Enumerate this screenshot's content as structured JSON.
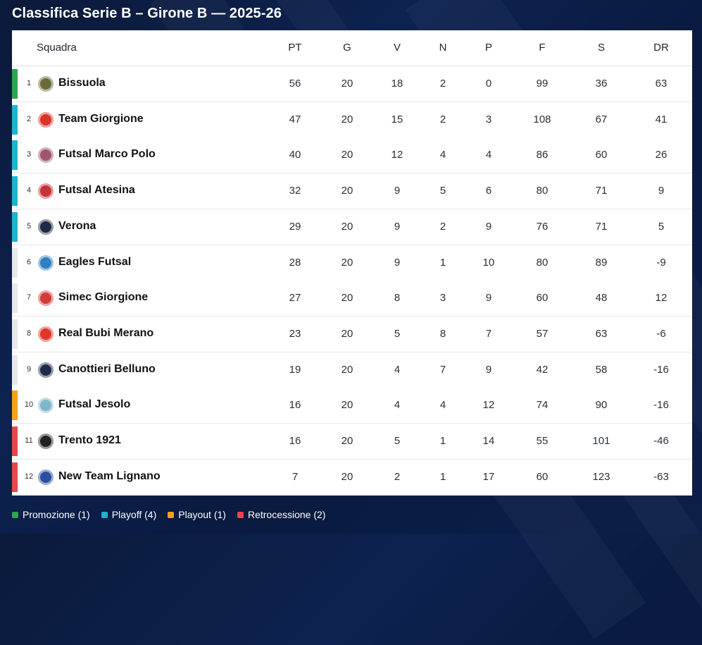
{
  "title": "Classifica Serie B – Girone B — 2025-26",
  "headers": {
    "team": "Squadra",
    "pt": "PT",
    "g": "G",
    "v": "V",
    "n": "N",
    "p": "P",
    "f": "F",
    "s": "S",
    "dr": "DR"
  },
  "zones": {
    "promozione": {
      "label": "Promozione (1)",
      "color": "#2ea44f"
    },
    "playoff": {
      "label": "Playoff (4)",
      "color": "#1fb3cf"
    },
    "playout": {
      "label": "Playout (1)",
      "color": "#f0a41c"
    },
    "retrocessione": {
      "label": "Retrocessione (2)",
      "color": "#e5484d"
    },
    "none": {
      "label": "",
      "color": "#e6e8ec"
    }
  },
  "rows": [
    {
      "pos": "1",
      "team": "Bissuola",
      "zone": "promozione",
      "crest_icon": "bissuola-crest-icon",
      "crest_color": "#6b6b3a",
      "pt": "56",
      "g": "20",
      "v": "18",
      "n": "2",
      "p": "0",
      "f": "99",
      "s": "36",
      "dr": "63"
    },
    {
      "pos": "2",
      "team": "Team Giorgione",
      "zone": "playoff",
      "crest_icon": "team-giorgione-crest-icon",
      "crest_color": "#d9342b",
      "pt": "47",
      "g": "20",
      "v": "15",
      "n": "2",
      "p": "3",
      "f": "108",
      "s": "67",
      "dr": "41"
    },
    {
      "pos": "3",
      "team": "Futsal Marco Polo",
      "zone": "playoff",
      "crest_icon": "futsal-marco-polo-crest-icon",
      "crest_color": "#a0566a",
      "pt": "40",
      "g": "20",
      "v": "12",
      "n": "4",
      "p": "4",
      "f": "86",
      "s": "60",
      "dr": "26"
    },
    {
      "pos": "4",
      "team": "Futsal Atesina",
      "zone": "playoff",
      "crest_icon": "futsal-atesina-crest-icon",
      "crest_color": "#c8323a",
      "pt": "32",
      "g": "20",
      "v": "9",
      "n": "5",
      "p": "6",
      "f": "80",
      "s": "71",
      "dr": "9"
    },
    {
      "pos": "5",
      "team": "Verona",
      "zone": "playoff",
      "crest_icon": "verona-crest-icon",
      "crest_color": "#1f2a44",
      "pt": "29",
      "g": "20",
      "v": "9",
      "n": "2",
      "p": "9",
      "f": "76",
      "s": "71",
      "dr": "5"
    },
    {
      "pos": "6",
      "team": "Eagles Futsal",
      "zone": "none",
      "crest_icon": "eagles-futsal-crest-icon",
      "crest_color": "#2f7fc1",
      "pt": "28",
      "g": "20",
      "v": "9",
      "n": "1",
      "p": "10",
      "f": "80",
      "s": "89",
      "dr": "-9"
    },
    {
      "pos": "7",
      "team": "Simec Giorgione",
      "zone": "none",
      "crest_icon": "simec-giorgione-crest-icon",
      "crest_color": "#d33a3a",
      "pt": "27",
      "g": "20",
      "v": "8",
      "n": "3",
      "p": "9",
      "f": "60",
      "s": "48",
      "dr": "12"
    },
    {
      "pos": "8",
      "team": "Real Bubi Merano",
      "zone": "none",
      "crest_icon": "real-bubi-merano-crest-icon",
      "crest_color": "#e0362c",
      "pt": "23",
      "g": "20",
      "v": "5",
      "n": "8",
      "p": "7",
      "f": "57",
      "s": "63",
      "dr": "-6"
    },
    {
      "pos": "9",
      "team": "Canottieri Belluno",
      "zone": "none",
      "crest_icon": "canottieri-belluno-crest-icon",
      "crest_color": "#1d2a4a",
      "pt": "19",
      "g": "20",
      "v": "4",
      "n": "7",
      "p": "9",
      "f": "42",
      "s": "58",
      "dr": "-16"
    },
    {
      "pos": "10",
      "team": "Futsal Jesolo",
      "zone": "playout",
      "crest_icon": "futsal-jesolo-crest-icon",
      "crest_color": "#7fb7c9",
      "pt": "16",
      "g": "20",
      "v": "4",
      "n": "4",
      "p": "12",
      "f": "74",
      "s": "90",
      "dr": "-16"
    },
    {
      "pos": "11",
      "team": "Trento 1921",
      "zone": "retrocessione",
      "crest_icon": "trento-crest-icon",
      "crest_color": "#222222",
      "pt": "16",
      "g": "20",
      "v": "5",
      "n": "1",
      "p": "14",
      "f": "55",
      "s": "101",
      "dr": "-46"
    },
    {
      "pos": "12",
      "team": "New Team Lignano",
      "zone": "retrocessione",
      "crest_icon": "new-team-lignano-crest-icon",
      "crest_color": "#2b4fa0",
      "pt": "7",
      "g": "20",
      "v": "2",
      "n": "1",
      "p": "17",
      "f": "60",
      "s": "123",
      "dr": "-63"
    }
  ],
  "legend": [
    "promozione",
    "playoff",
    "playout",
    "retrocessione"
  ]
}
